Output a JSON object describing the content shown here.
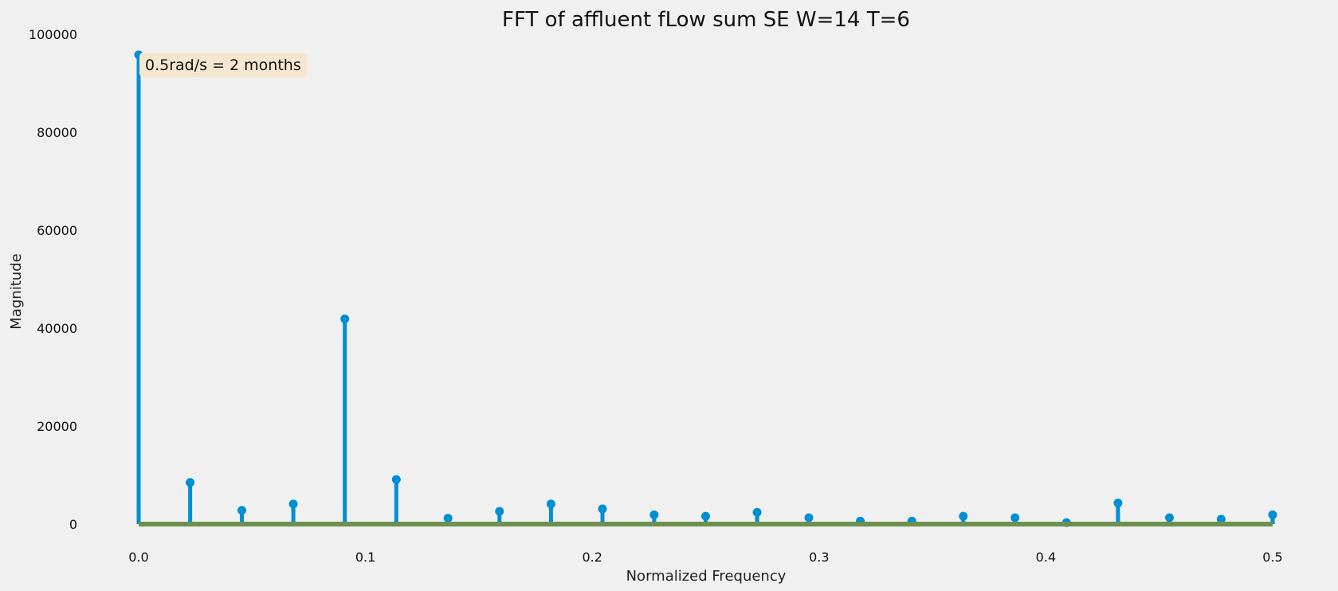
{
  "chart_data": {
    "type": "stem",
    "title": "FFT of affluent fLow sum SE W=14 T=6",
    "xlabel": "Normalized Frequency",
    "ylabel": "Magnitude",
    "xlim": [
      0.0,
      0.5
    ],
    "ylim": [
      0,
      100000
    ],
    "x_ticks": [
      0.0,
      0.1,
      0.2,
      0.3,
      0.4,
      0.5
    ],
    "x_tick_labels": [
      "0.0",
      "0.1",
      "0.2",
      "0.3",
      "0.4",
      "0.5"
    ],
    "y_ticks": [
      0,
      20000,
      40000,
      60000,
      80000,
      100000
    ],
    "y_tick_labels": [
      "0",
      "20000",
      "40000",
      "60000",
      "80000",
      "100000"
    ],
    "grid": false,
    "annotation": "0.5rad/s = 2 months",
    "colors": {
      "stem": "#008fd5",
      "baseline": "#6d904f",
      "annotation_box": "#f5e6d0",
      "background": "#f0f0f0"
    },
    "x": [
      0.0,
      0.0227,
      0.0455,
      0.0682,
      0.0909,
      0.1136,
      0.1364,
      0.1591,
      0.1818,
      0.2045,
      0.2273,
      0.25,
      0.2727,
      0.2955,
      0.3182,
      0.3409,
      0.3636,
      0.3864,
      0.4091,
      0.4318,
      0.4545,
      0.4773,
      0.5
    ],
    "values": [
      95800,
      8500,
      2800,
      4100,
      41900,
      9100,
      1200,
      2600,
      4100,
      3100,
      1900,
      1600,
      2400,
      1300,
      600,
      600,
      1600,
      1300,
      300,
      4300,
      1300,
      1000,
      1900
    ]
  }
}
